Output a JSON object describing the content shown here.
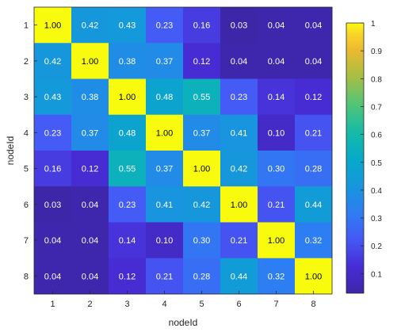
{
  "chart_data": {
    "type": "heatmap",
    "title": "",
    "xlabel": "nodeId",
    "ylabel": "nodeId",
    "x_categories": [
      "1",
      "2",
      "3",
      "4",
      "5",
      "6",
      "7",
      "8"
    ],
    "y_categories": [
      "1",
      "2",
      "3",
      "4",
      "5",
      "6",
      "7",
      "8"
    ],
    "values": [
      [
        1.0,
        0.42,
        0.43,
        0.23,
        0.16,
        0.03,
        0.04,
        0.04
      ],
      [
        0.42,
        1.0,
        0.38,
        0.37,
        0.12,
        0.04,
        0.04,
        0.04
      ],
      [
        0.43,
        0.38,
        1.0,
        0.48,
        0.55,
        0.23,
        0.14,
        0.12
      ],
      [
        0.23,
        0.37,
        0.48,
        1.0,
        0.37,
        0.41,
        0.1,
        0.21
      ],
      [
        0.16,
        0.12,
        0.55,
        0.37,
        1.0,
        0.42,
        0.3,
        0.28
      ],
      [
        0.03,
        0.04,
        0.23,
        0.41,
        0.42,
        1.0,
        0.21,
        0.44
      ],
      [
        0.04,
        0.04,
        0.14,
        0.1,
        0.3,
        0.21,
        1.0,
        0.32
      ],
      [
        0.04,
        0.04,
        0.12,
        0.21,
        0.28,
        0.44,
        0.32,
        1.0
      ]
    ],
    "value_labels": [
      [
        "1.00",
        "0.42",
        "0.43",
        "0.23",
        "0.16",
        "0.03",
        "0.04",
        "0.04"
      ],
      [
        "0.42",
        "1.00",
        "0.38",
        "0.37",
        "0.12",
        "0.04",
        "0.04",
        "0.04"
      ],
      [
        "0.43",
        "0.38",
        "1.00",
        "0.48",
        "0.55",
        "0.23",
        "0.14",
        "0.12"
      ],
      [
        "0.23",
        "0.37",
        "0.48",
        "1.00",
        "0.37",
        "0.41",
        "0.10",
        "0.21"
      ],
      [
        "0.16",
        "0.12",
        "0.55",
        "0.37",
        "1.00",
        "0.42",
        "0.30",
        "0.28"
      ],
      [
        "0.03",
        "0.04",
        "0.23",
        "0.41",
        "0.42",
        "1.00",
        "0.21",
        "0.44"
      ],
      [
        "0.04",
        "0.04",
        "0.14",
        "0.10",
        "0.30",
        "0.21",
        "1.00",
        "0.32"
      ],
      [
        "0.04",
        "0.04",
        "0.12",
        "0.21",
        "0.28",
        "0.44",
        "0.32",
        "1.00"
      ]
    ],
    "colormap": "parula",
    "colorbar": {
      "range": [
        0.03,
        1.0
      ],
      "ticks": [
        0.1,
        0.2,
        0.3,
        0.4,
        0.5,
        0.6,
        0.7,
        0.8,
        0.9,
        1.0
      ],
      "tick_labels": [
        "0.1",
        "0.2",
        "0.3",
        "0.4",
        "0.5",
        "0.6",
        "0.7",
        "0.8",
        "0.9",
        "1"
      ],
      "placement": "right"
    },
    "grid": false,
    "legend": "none"
  }
}
